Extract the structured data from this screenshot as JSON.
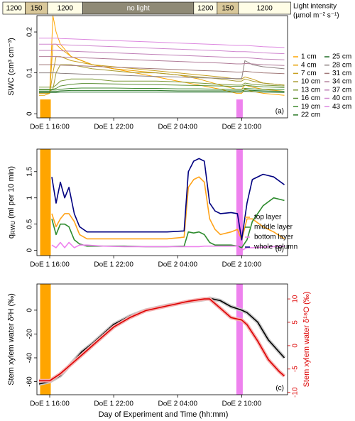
{
  "light_bar": {
    "title": "Light intensity",
    "unit": "(µmol m⁻² s⁻¹)",
    "segments": [
      {
        "label": "1200",
        "start": 11.6,
        "end": 13.7,
        "color": "#fffde6"
      },
      {
        "label": "150",
        "start": 13.7,
        "end": 15.8,
        "color": "#d9c89a"
      },
      {
        "label": "1200",
        "start": 15.8,
        "end": 19.1,
        "color": "#fffde6"
      },
      {
        "label": "no light",
        "start": 19.1,
        "end": 29.5,
        "color": "#8f8a76"
      },
      {
        "label": "1200",
        "start": 29.5,
        "end": 31.7,
        "color": "#fffde6"
      },
      {
        "label": "150",
        "start": 31.7,
        "end": 33.7,
        "color": "#d9c89a"
      },
      {
        "label": "1200",
        "start": 33.7,
        "end": 38.6,
        "color": "#fffde6"
      }
    ]
  },
  "xlabel": "Day of Experiment and Time (hh:mm)",
  "chart_data": [
    {
      "type": "line",
      "panel_label": "(a)",
      "ylabel": "SWC (cm³ cm⁻³)",
      "xlim": [
        14.8,
        38.3
      ],
      "xticks": [
        {
          "value": 16,
          "label": "DoE 1 16:00"
        },
        {
          "value": 22,
          "label": "DoE 1 22:00"
        },
        {
          "value": 28,
          "label": "DoE 2 04:00"
        },
        {
          "value": 34,
          "label": "DoE 2 10:00"
        }
      ],
      "ylim": [
        -0.01,
        0.24
      ],
      "yticks": [
        0,
        0.1,
        0.2
      ],
      "events": [
        {
          "start": 15.1,
          "end": 16.1,
          "top": 0.035,
          "color": "#ffa500"
        },
        {
          "start": 33.5,
          "end": 34.1,
          "top": 0.035,
          "color": "#ee82ee"
        }
      ],
      "x": [
        15,
        15.5,
        16,
        16.3,
        16.6,
        17,
        18,
        19,
        20,
        22,
        24,
        26,
        28,
        30,
        32,
        33.5,
        34,
        34.3,
        35,
        36,
        38
      ],
      "series": [
        {
          "name": "1 cm",
          "color": "#ffa500",
          "values": [
            0.05,
            0.05,
            0.05,
            0.24,
            0.2,
            0.17,
            0.14,
            0.13,
            0.12,
            0.11,
            0.1,
            0.09,
            0.08,
            0.07,
            0.06,
            0.05,
            0.05,
            0.06,
            0.055,
            0.05,
            0.045
          ]
        },
        {
          "name": "4 cm",
          "color": "#e8a000",
          "values": [
            0.045,
            0.045,
            0.05,
            0.17,
            0.17,
            0.16,
            0.14,
            0.13,
            0.12,
            0.11,
            0.105,
            0.1,
            0.095,
            0.085,
            0.07,
            0.06,
            0.06,
            0.07,
            0.065,
            0.06,
            0.055
          ]
        },
        {
          "name": "7 cm",
          "color": "#c8a020",
          "values": [
            0.05,
            0.05,
            0.05,
            0.1,
            0.14,
            0.14,
            0.13,
            0.125,
            0.12,
            0.115,
            0.11,
            0.105,
            0.1,
            0.095,
            0.09,
            0.085,
            0.085,
            0.09,
            0.085,
            0.075,
            0.07
          ]
        },
        {
          "name": "10 cm",
          "color": "#a89a30",
          "values": [
            0.055,
            0.055,
            0.055,
            0.06,
            0.1,
            0.12,
            0.12,
            0.115,
            0.11,
            0.105,
            0.1,
            0.1,
            0.095,
            0.09,
            0.085,
            0.08,
            0.08,
            0.085,
            0.08,
            0.075,
            0.07
          ]
        },
        {
          "name": "13 cm",
          "color": "#7e9a3a",
          "values": [
            0.065,
            0.065,
            0.065,
            0.065,
            0.07,
            0.08,
            0.085,
            0.085,
            0.085,
            0.08,
            0.08,
            0.08,
            0.078,
            0.075,
            0.072,
            0.07,
            0.07,
            0.075,
            0.072,
            0.07,
            0.068
          ]
        },
        {
          "name": "16 cm",
          "color": "#5a8f34",
          "values": [
            0.06,
            0.06,
            0.06,
            0.06,
            0.062,
            0.068,
            0.072,
            0.074,
            0.074,
            0.073,
            0.072,
            0.071,
            0.07,
            0.069,
            0.068,
            0.067,
            0.067,
            0.07,
            0.068,
            0.066,
            0.064
          ]
        },
        {
          "name": "19 cm",
          "color": "#3f8a30",
          "values": [
            0.058,
            0.058,
            0.058,
            0.058,
            0.058,
            0.06,
            0.062,
            0.063,
            0.063,
            0.063,
            0.062,
            0.062,
            0.061,
            0.061,
            0.06,
            0.06,
            0.06,
            0.062,
            0.061,
            0.06,
            0.059
          ]
        },
        {
          "name": "22 cm",
          "color": "#2d7a2a",
          "values": [
            0.055,
            0.055,
            0.055,
            0.055,
            0.055,
            0.056,
            0.057,
            0.057,
            0.057,
            0.057,
            0.057,
            0.057,
            0.056,
            0.056,
            0.056,
            0.056,
            0.056,
            0.058,
            0.057,
            0.056,
            0.055
          ]
        },
        {
          "name": "25 cm",
          "color": "#1e6b24",
          "values": [
            0.052,
            0.052,
            0.052,
            0.052,
            0.052,
            0.053,
            0.053,
            0.053,
            0.053,
            0.053,
            0.053,
            0.053,
            0.053,
            0.053,
            0.053,
            0.053,
            0.053,
            0.055,
            0.054,
            0.053,
            0.052
          ]
        },
        {
          "name": "28 cm",
          "color": "#8c8080",
          "values": [
            0.1,
            0.1,
            0.1,
            0.1,
            0.1,
            0.099,
            0.098,
            0.097,
            0.096,
            0.095,
            0.093,
            0.091,
            0.09,
            0.088,
            0.087,
            0.086,
            0.086,
            0.13,
            0.12,
            0.115,
            0.11
          ]
        },
        {
          "name": "31 cm",
          "color": "#a07878",
          "values": [
            0.12,
            0.12,
            0.12,
            0.12,
            0.12,
            0.119,
            0.118,
            0.117,
            0.116,
            0.114,
            0.112,
            0.11,
            0.108,
            0.106,
            0.104,
            0.102,
            0.102,
            0.104,
            0.102,
            0.1,
            0.098
          ]
        },
        {
          "name": "34 cm",
          "color": "#b07c98",
          "values": [
            0.14,
            0.14,
            0.14,
            0.14,
            0.14,
            0.139,
            0.138,
            0.137,
            0.136,
            0.134,
            0.132,
            0.13,
            0.128,
            0.126,
            0.124,
            0.122,
            0.122,
            0.123,
            0.122,
            0.12,
            0.118
          ]
        },
        {
          "name": "37 cm",
          "color": "#c080b8",
          "values": [
            0.155,
            0.155,
            0.155,
            0.155,
            0.155,
            0.154,
            0.153,
            0.152,
            0.151,
            0.149,
            0.147,
            0.145,
            0.143,
            0.141,
            0.139,
            0.137,
            0.137,
            0.137,
            0.136,
            0.134,
            0.132
          ]
        },
        {
          "name": "40 cm",
          "color": "#d088d0",
          "values": [
            0.17,
            0.17,
            0.17,
            0.17,
            0.17,
            0.169,
            0.168,
            0.167,
            0.166,
            0.164,
            0.162,
            0.16,
            0.158,
            0.156,
            0.154,
            0.152,
            0.152,
            0.152,
            0.151,
            0.149,
            0.147
          ]
        },
        {
          "name": "43 cm",
          "color": "#dd88e0",
          "values": [
            0.185,
            0.185,
            0.185,
            0.185,
            0.185,
            0.184,
            0.183,
            0.182,
            0.181,
            0.179,
            0.177,
            0.175,
            0.173,
            0.171,
            0.169,
            0.167,
            0.167,
            0.167,
            0.166,
            0.164,
            0.162
          ]
        }
      ]
    },
    {
      "type": "line",
      "panel_label": "(b)",
      "ylabel": {
        "main": "q",
        "sub": "RWU",
        "rest": " (ml per 10 min)"
      },
      "xlim": [
        14.8,
        38.3
      ],
      "xticks": [
        {
          "value": 16,
          "label": "DoE 1 16:00"
        },
        {
          "value": 22,
          "label": "DoE 1 22:00"
        },
        {
          "value": 28,
          "label": "DoE 2 04:00"
        },
        {
          "value": 34,
          "label": "DoE 2 10:00"
        }
      ],
      "ylim": [
        -0.1,
        1.93
      ],
      "yticks": [
        0,
        0.5,
        1,
        1.5
      ],
      "events": [
        {
          "start": 15.1,
          "end": 16.1,
          "color": "#ffa500"
        },
        {
          "start": 33.5,
          "end": 34.1,
          "color": "#ee82ee"
        }
      ],
      "x": [
        16.2,
        16.6,
        17,
        17.4,
        17.8,
        18.3,
        18.8,
        19.5,
        21,
        23,
        25,
        27,
        28.6,
        29,
        29.5,
        30,
        30.5,
        31,
        31.5,
        32,
        33,
        33.6,
        34,
        34.5,
        35,
        36,
        37,
        38
      ],
      "series": [
        {
          "name": "top layer",
          "color": "#ffa31a",
          "values": [
            0.7,
            0.45,
            0.6,
            0.7,
            0.7,
            0.55,
            0.3,
            0.22,
            0.22,
            0.22,
            0.22,
            0.22,
            0.25,
            1.2,
            1.35,
            1.4,
            1.3,
            0.6,
            0.4,
            0.3,
            0.35,
            0.4,
            0.2,
            0.6,
            0.6,
            0.45,
            0.35,
            0.22
          ]
        },
        {
          "name": "middle layer",
          "color": "#2e8b2e",
          "values": [
            0.6,
            0.3,
            0.5,
            0.5,
            0.45,
            0.2,
            0.12,
            0.08,
            0.08,
            0.08,
            0.07,
            0.07,
            0.08,
            0.35,
            0.33,
            0.35,
            0.3,
            0.15,
            0.1,
            0.1,
            0.1,
            0.08,
            0.05,
            0.2,
            0.55,
            0.85,
            1.0,
            0.95
          ]
        },
        {
          "name": "bottom layer",
          "color": "#ee82ee",
          "values": [
            0.1,
            0.05,
            0.15,
            0.05,
            0.15,
            0.05,
            0.1,
            0.1,
            0.08,
            0.07,
            0.07,
            0.07,
            0.07,
            0.07,
            0.07,
            0.07,
            0.08,
            0.08,
            0.08,
            0.08,
            0.08,
            0.08,
            0.0,
            0.05,
            0.05,
            0.06,
            0.07,
            0.08
          ]
        },
        {
          "name": "whole column",
          "color": "#000080",
          "values": [
            1.4,
            0.9,
            1.3,
            1.0,
            1.2,
            0.7,
            0.45,
            0.35,
            0.35,
            0.35,
            0.35,
            0.35,
            0.37,
            1.5,
            1.7,
            1.75,
            1.7,
            0.9,
            0.75,
            0.7,
            0.72,
            0.7,
            0.2,
            0.9,
            1.35,
            1.45,
            1.4,
            1.25
          ]
        }
      ]
    },
    {
      "type": "line",
      "panel_label": "(c)",
      "ylabel": "Stem xylem water δ²H (‰)",
      "y2label": "Stem xylem water δ¹⁸O (‰)",
      "y2color": "#dd0000",
      "xlim": [
        14.8,
        38.3
      ],
      "xticks": [
        {
          "value": 16,
          "label": "DoE 1 16:00"
        },
        {
          "value": 22,
          "label": "DoE 1 22:00"
        },
        {
          "value": 28,
          "label": "DoE 2 04:00"
        },
        {
          "value": 34,
          "label": "DoE 2 10:00"
        }
      ],
      "ylim": [
        -71,
        22
      ],
      "yticks": [
        -60,
        -40,
        -20,
        0
      ],
      "y2lim": [
        -10.5,
        13.2
      ],
      "y2ticks": [
        -10,
        -5,
        0,
        5,
        10
      ],
      "events": [
        {
          "start": 15.1,
          "end": 16.1,
          "color": "#ffa500"
        },
        {
          "start": 33.5,
          "end": 34.1,
          "color": "#ee82ee"
        }
      ],
      "x": [
        15,
        16,
        17,
        18,
        19,
        20,
        21,
        22,
        23.5,
        25,
        27,
        29,
        30.5,
        31,
        32,
        33,
        34,
        34.5,
        35.5,
        36.5,
        37.5,
        38
      ],
      "series": [
        {
          "name": "δ²H",
          "color": "#000000",
          "halo": "#c8c8c8",
          "values": [
            -62,
            -60,
            -55,
            -45,
            -35,
            -28,
            -20,
            -12,
            -5,
            0,
            4,
            7,
            9,
            10,
            8,
            3,
            0,
            -2,
            -10,
            -25,
            -35,
            -40
          ]
        },
        {
          "name": "δ¹⁸O",
          "axis": "y2",
          "color": "#dd0000",
          "halo": "#f4b0b0",
          "values": [
            -7.5,
            -7.5,
            -6,
            -4,
            -2,
            0,
            2,
            4,
            6,
            7.5,
            8.5,
            9.5,
            10,
            10,
            8,
            6,
            5.5,
            4.5,
            1,
            -3,
            -5.5,
            -6.5
          ]
        }
      ]
    }
  ]
}
